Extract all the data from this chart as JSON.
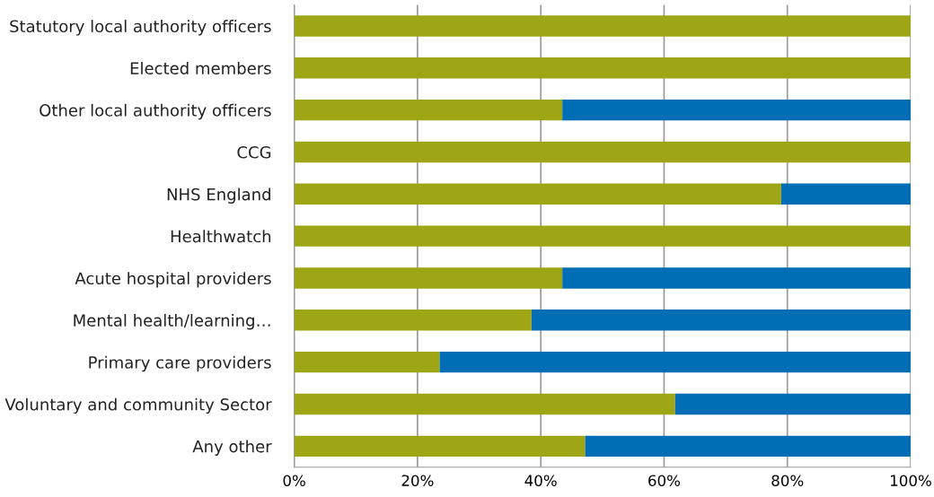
{
  "chart_data": {
    "type": "bar",
    "orientation": "horizontal",
    "stacked": true,
    "categories": [
      "Statutory local authority officers",
      "Elected members",
      "Other local authority officers",
      "CCG",
      "NHS England",
      "Healthwatch",
      "Acute hospital providers",
      "Mental health/learning…",
      "Primary care providers",
      "Voluntary and community Sector",
      "Any other"
    ],
    "series": [
      {
        "color": "#9ea615",
        "values": [
          100,
          100,
          43.5,
          100,
          79.0,
          100,
          43.5,
          38.5,
          23.6,
          61.8,
          47.2
        ]
      },
      {
        "color": "#006eb5",
        "values": [
          0,
          0,
          56.5,
          0,
          21.0,
          0,
          56.5,
          61.5,
          76.4,
          38.2,
          52.8
        ]
      }
    ],
    "xlim": [
      0,
      100
    ],
    "xticks": [
      {
        "value": 0,
        "label": "0%"
      },
      {
        "value": 20,
        "label": "20%"
      },
      {
        "value": 40,
        "label": "40%"
      },
      {
        "value": 60,
        "label": "60%"
      },
      {
        "value": 80,
        "label": "80%"
      },
      {
        "value": 100,
        "label": "100%"
      }
    ],
    "grid": "x",
    "legend": false
  }
}
